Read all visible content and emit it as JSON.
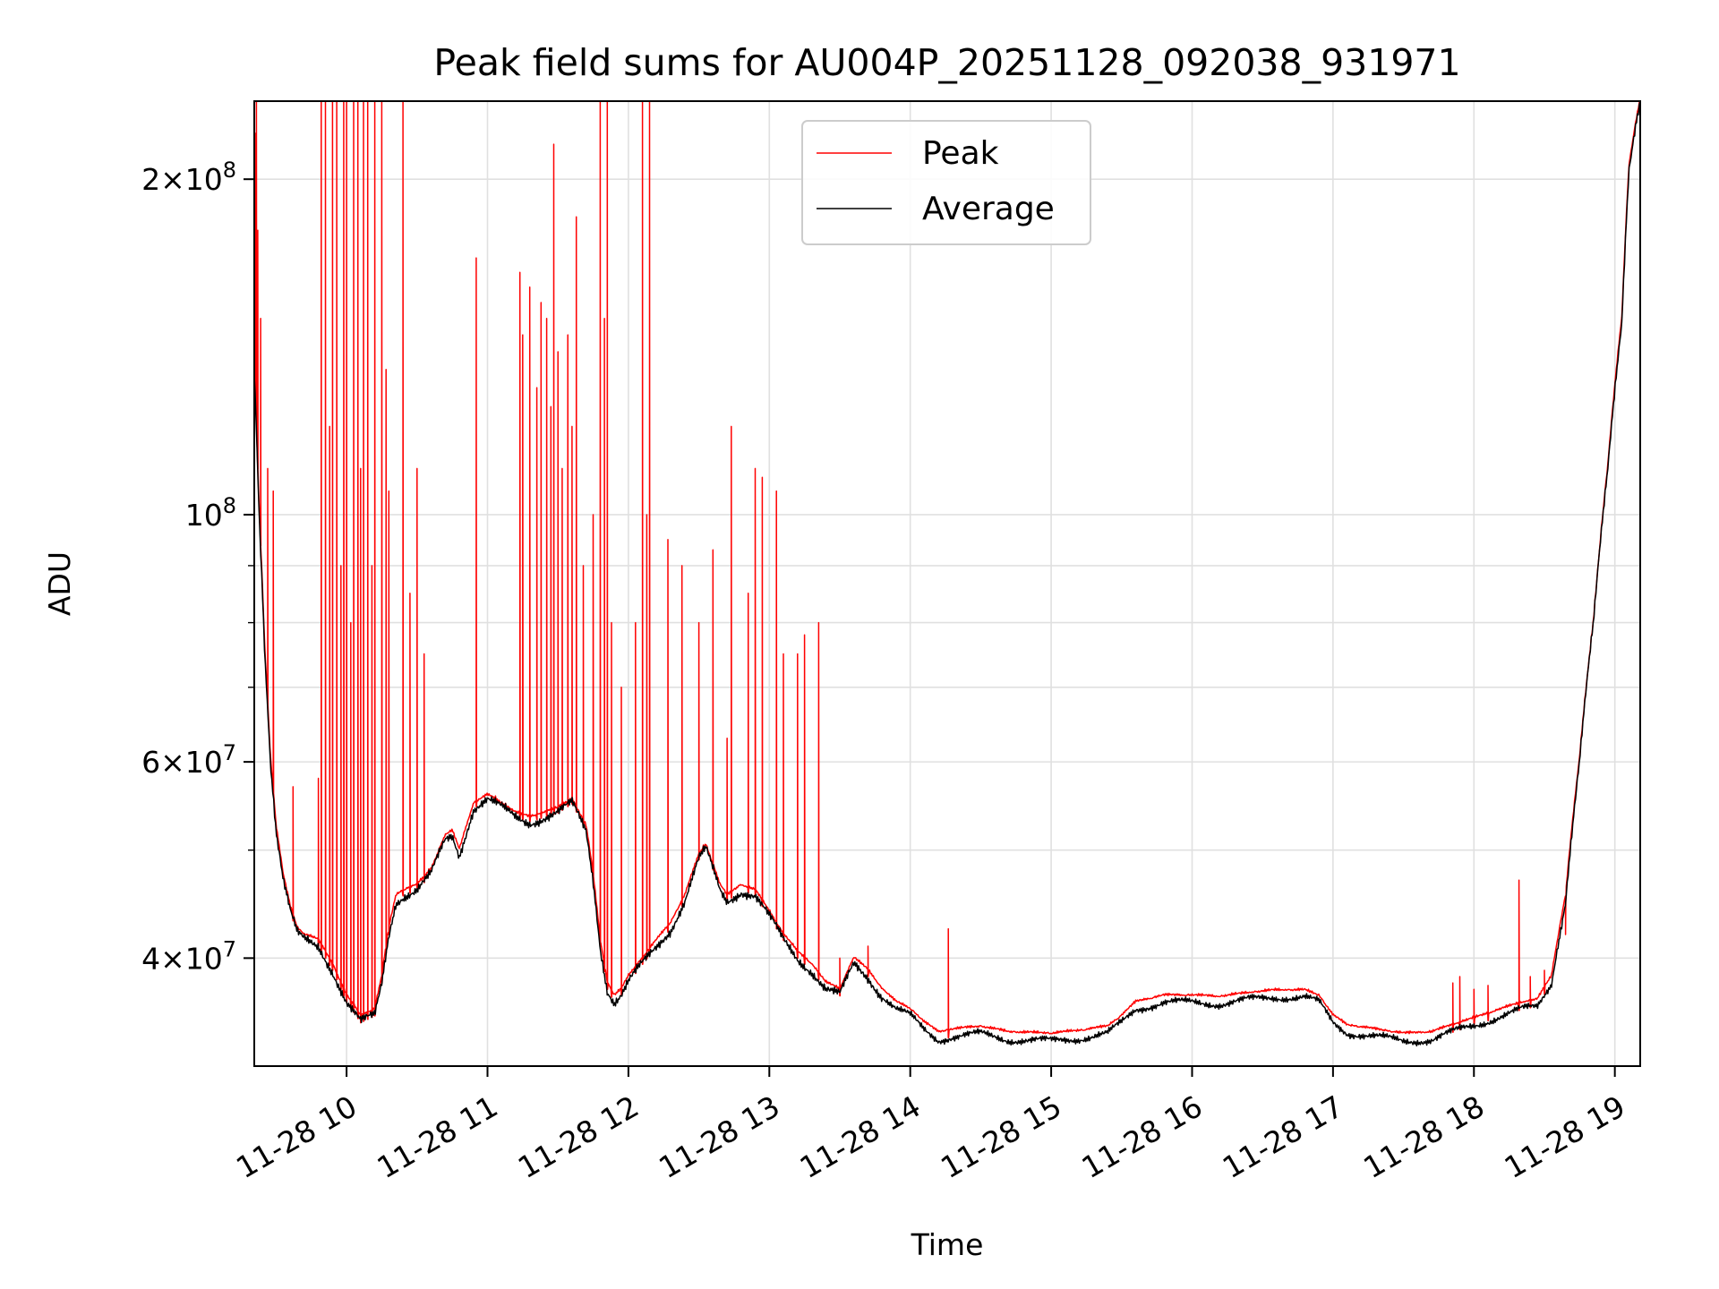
{
  "chart_data": {
    "type": "line",
    "title": "Peak field sums for AU004P_20251128_092038_931971",
    "xlabel": "Time",
    "ylabel": "ADU",
    "yscale": "log",
    "ylim": [
      32000000,
      235000000
    ],
    "xlim_hours": [
      9.345,
      19.18
    ],
    "grid": true,
    "legend_position": "top-center",
    "colors": {
      "peak": "#ff0000",
      "average": "#000000",
      "grid": "#e0e0e0",
      "axes": "#000000"
    },
    "x_ticks": [
      {
        "hour": 10,
        "label": "11-28 10"
      },
      {
        "hour": 11,
        "label": "11-28 11"
      },
      {
        "hour": 12,
        "label": "11-28 12"
      },
      {
        "hour": 13,
        "label": "11-28 13"
      },
      {
        "hour": 14,
        "label": "11-28 14"
      },
      {
        "hour": 15,
        "label": "11-28 15"
      },
      {
        "hour": 16,
        "label": "11-28 16"
      },
      {
        "hour": 17,
        "label": "11-28 17"
      },
      {
        "hour": 18,
        "label": "11-28 18"
      },
      {
        "hour": 19,
        "label": "11-28 19"
      }
    ],
    "y_major_ticks": [
      {
        "value": 40000000,
        "mantissa": "4",
        "exponent": "7"
      },
      {
        "value": 60000000,
        "mantissa": "6",
        "exponent": "7"
      },
      {
        "value": 100000000,
        "mantissa": "",
        "exponent": "8"
      },
      {
        "value": 200000000,
        "mantissa": "2",
        "exponent": "8"
      }
    ],
    "y_minor_ticks": [
      50000000,
      70000000,
      80000000,
      90000000
    ],
    "series": [
      {
        "name": "Average",
        "color": "#000000",
        "x": [
          9.345,
          9.38,
          9.42,
          9.46,
          9.5,
          9.55,
          9.6,
          9.65,
          9.7,
          9.8,
          9.9,
          10.0,
          10.1,
          10.2,
          10.25,
          10.3,
          10.35,
          10.4,
          10.5,
          10.6,
          10.7,
          10.75,
          10.8,
          10.85,
          10.9,
          11.0,
          11.1,
          11.2,
          11.3,
          11.4,
          11.5,
          11.6,
          11.7,
          11.75,
          11.8,
          11.85,
          11.9,
          11.95,
          12.0,
          12.1,
          12.2,
          12.3,
          12.4,
          12.5,
          12.55,
          12.6,
          12.65,
          12.7,
          12.8,
          12.9,
          13.0,
          13.1,
          13.2,
          13.3,
          13.4,
          13.5,
          13.6,
          13.7,
          13.8,
          13.9,
          14.0,
          14.1,
          14.2,
          14.3,
          14.5,
          14.7,
          15.0,
          15.2,
          15.4,
          15.5,
          15.6,
          15.8,
          16.0,
          16.2,
          16.4,
          16.6,
          16.8,
          16.9,
          17.0,
          17.1,
          17.3,
          17.5,
          17.7,
          17.9,
          18.0,
          18.2,
          18.35,
          18.45,
          18.55,
          18.65,
          18.75,
          18.85,
          18.95,
          19.05,
          19.1,
          19.15,
          19.18
        ],
        "values": [
          135000000,
          100000000,
          75000000,
          60000000,
          52000000,
          47000000,
          44000000,
          42000000,
          41500000,
          41000000,
          39000000,
          36500000,
          35000000,
          35500000,
          38000000,
          42000000,
          45000000,
          45500000,
          46000000,
          47500000,
          51000000,
          51500000,
          49500000,
          52000000,
          54500000,
          55500000,
          54500000,
          53500000,
          53000000,
          53500000,
          54000000,
          55000000,
          52000000,
          47000000,
          41000000,
          37500000,
          36500000,
          37000000,
          38000000,
          39500000,
          41000000,
          42500000,
          45000000,
          49000000,
          50000000,
          48000000,
          46000000,
          45000000,
          46000000,
          45500000,
          43500000,
          41500000,
          40000000,
          39000000,
          37500000,
          37000000,
          39500000,
          38500000,
          37000000,
          36000000,
          35500000,
          34500000,
          33800000,
          34000000,
          34200000,
          33800000,
          33700000,
          33900000,
          34200000,
          35000000,
          36000000,
          36500000,
          36500000,
          36400000,
          36700000,
          36900000,
          36900000,
          36500000,
          35000000,
          34300000,
          34000000,
          33700000,
          33800000,
          34500000,
          34800000,
          35500000,
          36000000,
          36200000,
          38000000,
          45000000,
          60000000,
          80000000,
          110000000,
          150000000,
          205000000,
          225000000,
          235000000
        ]
      },
      {
        "name": "Peak",
        "color": "#ff0000",
        "base_offset": 500000,
        "spikes": [
          {
            "hour": 9.35,
            "value": 220000000
          },
          {
            "hour": 9.36,
            "value": 235000000
          },
          {
            "hour": 9.37,
            "value": 180000000
          },
          {
            "hour": 9.39,
            "value": 150000000
          },
          {
            "hour": 9.44,
            "value": 110000000
          },
          {
            "hour": 9.48,
            "value": 105000000
          },
          {
            "hour": 9.62,
            "value": 57000000
          },
          {
            "hour": 9.8,
            "value": 58000000
          },
          {
            "hour": 9.82,
            "value": 235000000
          },
          {
            "hour": 9.85,
            "value": 235000000
          },
          {
            "hour": 9.88,
            "value": 120000000
          },
          {
            "hour": 9.9,
            "value": 235000000
          },
          {
            "hour": 9.93,
            "value": 235000000
          },
          {
            "hour": 9.96,
            "value": 90000000
          },
          {
            "hour": 9.98,
            "value": 235000000
          },
          {
            "hour": 10.0,
            "value": 235000000
          },
          {
            "hour": 10.03,
            "value": 80000000
          },
          {
            "hour": 10.05,
            "value": 235000000
          },
          {
            "hour": 10.08,
            "value": 235000000
          },
          {
            "hour": 10.1,
            "value": 110000000
          },
          {
            "hour": 10.12,
            "value": 235000000
          },
          {
            "hour": 10.15,
            "value": 235000000
          },
          {
            "hour": 10.18,
            "value": 90000000
          },
          {
            "hour": 10.2,
            "value": 235000000
          },
          {
            "hour": 10.25,
            "value": 235000000
          },
          {
            "hour": 10.28,
            "value": 135000000
          },
          {
            "hour": 10.3,
            "value": 105000000
          },
          {
            "hour": 10.4,
            "value": 235000000
          },
          {
            "hour": 10.45,
            "value": 85000000
          },
          {
            "hour": 10.5,
            "value": 110000000
          },
          {
            "hour": 10.55,
            "value": 75000000
          },
          {
            "hour": 10.92,
            "value": 170000000
          },
          {
            "hour": 11.23,
            "value": 165000000
          },
          {
            "hour": 11.25,
            "value": 145000000
          },
          {
            "hour": 11.3,
            "value": 160000000
          },
          {
            "hour": 11.35,
            "value": 130000000
          },
          {
            "hour": 11.38,
            "value": 155000000
          },
          {
            "hour": 11.42,
            "value": 150000000
          },
          {
            "hour": 11.45,
            "value": 125000000
          },
          {
            "hour": 11.47,
            "value": 215000000
          },
          {
            "hour": 11.5,
            "value": 140000000
          },
          {
            "hour": 11.53,
            "value": 110000000
          },
          {
            "hour": 11.57,
            "value": 145000000
          },
          {
            "hour": 11.6,
            "value": 120000000
          },
          {
            "hour": 11.63,
            "value": 185000000
          },
          {
            "hour": 11.68,
            "value": 90000000
          },
          {
            "hour": 11.75,
            "value": 100000000
          },
          {
            "hour": 11.8,
            "value": 235000000
          },
          {
            "hour": 11.83,
            "value": 150000000
          },
          {
            "hour": 11.85,
            "value": 235000000
          },
          {
            "hour": 11.88,
            "value": 80000000
          },
          {
            "hour": 11.95,
            "value": 70000000
          },
          {
            "hour": 12.05,
            "value": 80000000
          },
          {
            "hour": 12.1,
            "value": 235000000
          },
          {
            "hour": 12.13,
            "value": 100000000
          },
          {
            "hour": 12.15,
            "value": 235000000
          },
          {
            "hour": 12.28,
            "value": 95000000
          },
          {
            "hour": 12.38,
            "value": 90000000
          },
          {
            "hour": 12.5,
            "value": 80000000
          },
          {
            "hour": 12.6,
            "value": 93000000
          },
          {
            "hour": 12.7,
            "value": 63000000
          },
          {
            "hour": 12.73,
            "value": 120000000
          },
          {
            "hour": 12.85,
            "value": 85000000
          },
          {
            "hour": 12.9,
            "value": 110000000
          },
          {
            "hour": 12.95,
            "value": 108000000
          },
          {
            "hour": 13.05,
            "value": 105000000
          },
          {
            "hour": 13.1,
            "value": 75000000
          },
          {
            "hour": 13.2,
            "value": 75000000
          },
          {
            "hour": 13.25,
            "value": 78000000
          },
          {
            "hour": 13.35,
            "value": 80000000
          },
          {
            "hour": 13.5,
            "value": 40000000
          },
          {
            "hour": 13.7,
            "value": 41000000
          },
          {
            "hour": 14.27,
            "value": 42500000
          },
          {
            "hour": 17.85,
            "value": 38000000
          },
          {
            "hour": 17.9,
            "value": 38500000
          },
          {
            "hour": 18.0,
            "value": 37500000
          },
          {
            "hour": 18.1,
            "value": 37800000
          },
          {
            "hour": 18.32,
            "value": 47000000
          },
          {
            "hour": 18.4,
            "value": 38500000
          },
          {
            "hour": 18.5,
            "value": 39000000
          },
          {
            "hour": 18.65,
            "value": 42000000
          }
        ]
      }
    ]
  }
}
